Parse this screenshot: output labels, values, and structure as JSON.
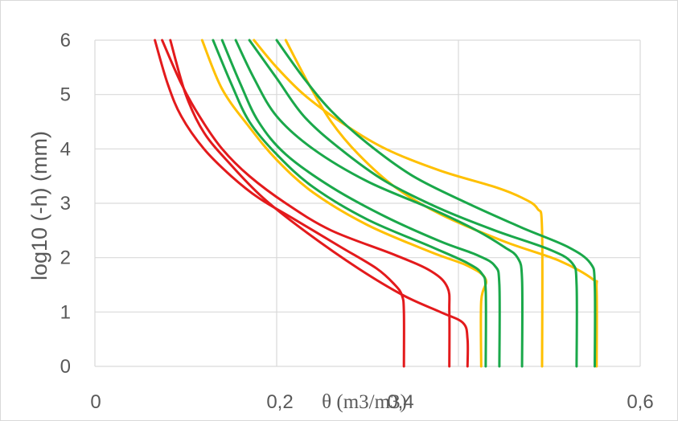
{
  "chart_data": {
    "type": "line",
    "xlabel": "θ (m3/m3)",
    "ylabel": "log10 (-h) (mm)",
    "xlim": [
      0,
      0.6
    ],
    "ylim": [
      0,
      6
    ],
    "x_ticks": [
      "0",
      "0,2",
      "0,4",
      "0,6"
    ],
    "y_ticks": [
      "0",
      "1",
      "2",
      "3",
      "4",
      "5",
      "6"
    ],
    "grid": true,
    "legend": "none",
    "colors": {
      "red": "#e31a1c",
      "orange": "#ffc000",
      "green": "#1aa84a",
      "grid": "#d9d9d9",
      "text": "#595959"
    },
    "series": [
      {
        "color": "red",
        "x": [
          0.34,
          0.34,
          0.338,
          0.33,
          0.31,
          0.27,
          0.22,
          0.18,
          0.15,
          0.12,
          0.095,
          0.08,
          0.066
        ],
        "y": [
          0,
          1.0,
          1.3,
          1.5,
          1.8,
          2.2,
          2.7,
          3.1,
          3.5,
          4.0,
          4.6,
          5.2,
          6.0
        ]
      },
      {
        "color": "red",
        "x": [
          0.39,
          0.39,
          0.388,
          0.37,
          0.33,
          0.26,
          0.21,
          0.17,
          0.14,
          0.115,
          0.095,
          0.074
        ],
        "y": [
          0,
          1.0,
          1.45,
          1.75,
          2.05,
          2.5,
          3.0,
          3.5,
          4.0,
          4.6,
          5.2,
          6.0
        ]
      },
      {
        "color": "red",
        "x": [
          0.41,
          0.41,
          0.405,
          0.38,
          0.34,
          0.29,
          0.23,
          0.185,
          0.15,
          0.12,
          0.1,
          0.083
        ],
        "y": [
          0,
          0.5,
          0.8,
          1.0,
          1.3,
          1.8,
          2.5,
          3.1,
          3.7,
          4.3,
          5.0,
          6.0
        ]
      },
      {
        "color": "orange",
        "x": [
          0.425,
          0.425,
          0.43,
          0.41,
          0.37,
          0.3,
          0.24,
          0.2,
          0.17,
          0.14,
          0.118
        ],
        "y": [
          0,
          1.2,
          1.6,
          1.85,
          2.1,
          2.6,
          3.2,
          3.8,
          4.4,
          5.1,
          6.0
        ]
      },
      {
        "color": "orange",
        "x": [
          0.492,
          0.492,
          0.487,
          0.47,
          0.44,
          0.38,
          0.32,
          0.27,
          0.23,
          0.2,
          0.175
        ],
        "y": [
          0,
          2.5,
          2.9,
          3.1,
          3.3,
          3.6,
          4.0,
          4.5,
          5.0,
          5.5,
          6.0
        ]
      },
      {
        "color": "orange",
        "x": [
          0.552,
          0.552,
          0.548,
          0.51,
          0.45,
          0.38,
          0.33,
          0.29,
          0.26,
          0.235,
          0.21
        ],
        "y": [
          0,
          1.4,
          1.6,
          1.95,
          2.3,
          2.8,
          3.3,
          3.9,
          4.5,
          5.2,
          6.0
        ]
      },
      {
        "color": "green",
        "x": [
          0.43,
          0.43,
          0.426,
          0.41,
          0.37,
          0.3,
          0.24,
          0.2,
          0.17,
          0.15,
          0.13
        ],
        "y": [
          0,
          1.4,
          1.7,
          1.9,
          2.2,
          2.7,
          3.3,
          3.9,
          4.5,
          5.2,
          6.0
        ]
      },
      {
        "color": "green",
        "x": [
          0.445,
          0.445,
          0.44,
          0.42,
          0.38,
          0.32,
          0.26,
          0.21,
          0.18,
          0.16,
          0.14
        ],
        "y": [
          0,
          1.5,
          1.85,
          2.05,
          2.3,
          2.75,
          3.3,
          3.9,
          4.5,
          5.2,
          6.0
        ]
      },
      {
        "color": "green",
        "x": [
          0.47,
          0.47,
          0.465,
          0.45,
          0.42,
          0.37,
          0.3,
          0.24,
          0.2,
          0.175,
          0.155
        ],
        "y": [
          0,
          1.6,
          2.0,
          2.2,
          2.5,
          2.9,
          3.4,
          4.0,
          4.6,
          5.3,
          6.0
        ]
      },
      {
        "color": "green",
        "x": [
          0.53,
          0.53,
          0.525,
          0.5,
          0.44,
          0.38,
          0.32,
          0.27,
          0.23,
          0.2,
          0.17
        ],
        "y": [
          0,
          1.5,
          1.9,
          2.15,
          2.5,
          2.9,
          3.4,
          4.0,
          4.6,
          5.3,
          6.0
        ]
      },
      {
        "color": "green",
        "x": [
          0.55,
          0.55,
          0.545,
          0.52,
          0.47,
          0.41,
          0.35,
          0.3,
          0.26,
          0.23,
          0.2
        ],
        "y": [
          0,
          1.5,
          1.9,
          2.2,
          2.55,
          3.0,
          3.5,
          4.1,
          4.7,
          5.3,
          6.0
        ]
      }
    ]
  }
}
